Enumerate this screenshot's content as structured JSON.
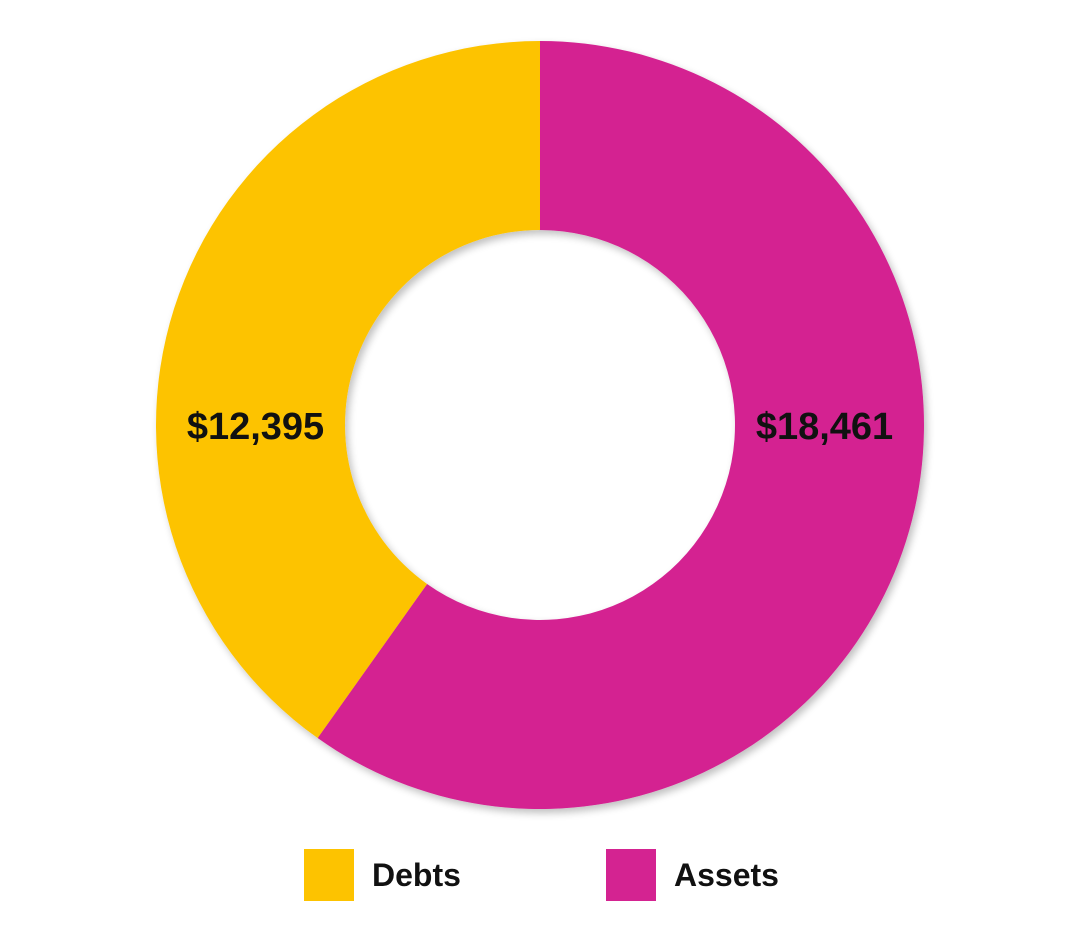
{
  "chart_data": {
    "type": "pie",
    "variant": "donut",
    "title": "",
    "categories": [
      "Debts",
      "Assets"
    ],
    "values": [
      12395,
      18461
    ],
    "value_labels": [
      "$12,395",
      "$18,461"
    ],
    "colors": [
      "#FDC300",
      "#D42391"
    ],
    "legend": {
      "placement": "bottom",
      "entries": [
        "Debts",
        "Assets"
      ]
    },
    "grid": false
  }
}
